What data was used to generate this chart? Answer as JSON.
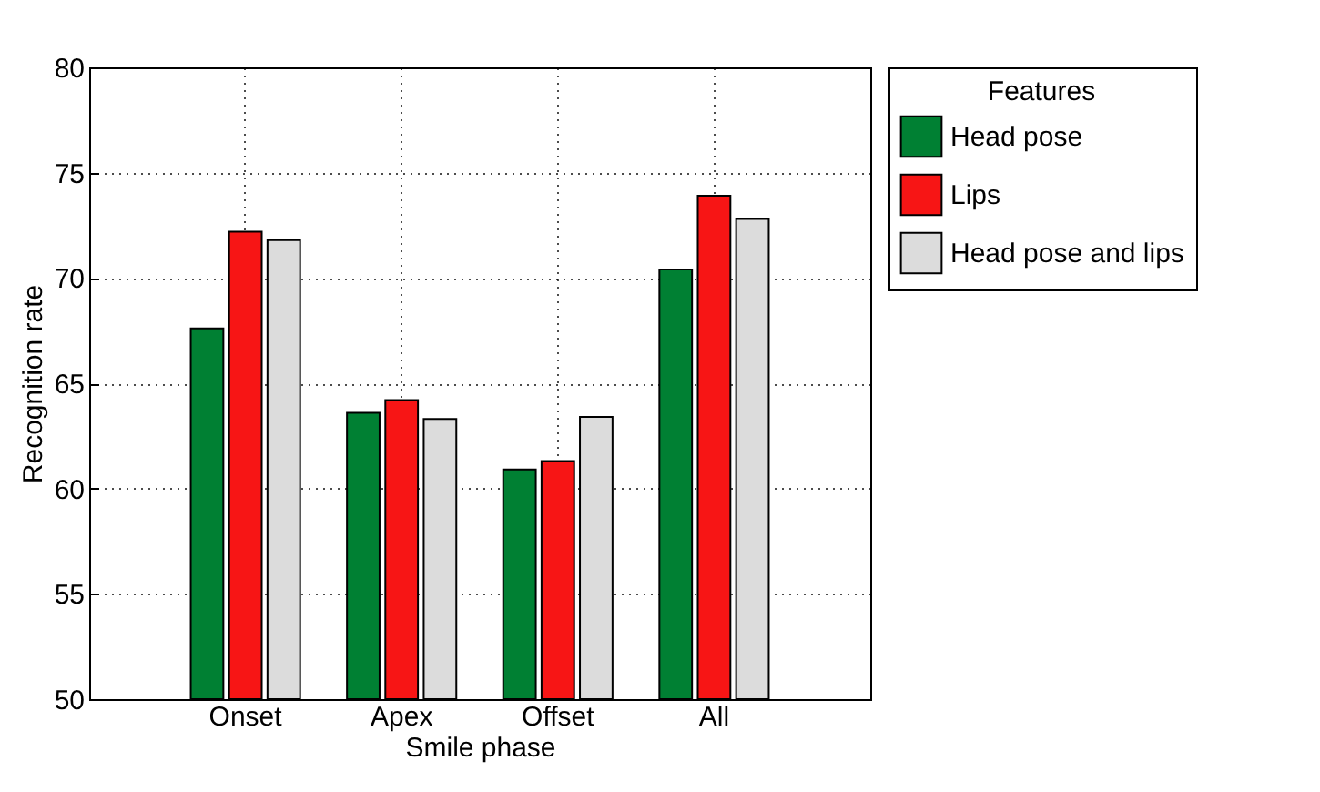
{
  "chart_data": {
    "type": "bar",
    "xlabel": "Smile phase",
    "ylabel": "Recognition rate",
    "legend_title": "Features",
    "categories": [
      "Onset",
      "Apex",
      "Offset",
      "All"
    ],
    "series": [
      {
        "name": "Head pose",
        "color": "#008033",
        "values": [
          67.6,
          63.6,
          60.9,
          70.4
        ]
      },
      {
        "name": "Lips",
        "color": "#f71515",
        "values": [
          72.2,
          64.2,
          61.3,
          73.9
        ]
      },
      {
        "name": "Head pose and lips",
        "color": "#dcdcdc",
        "values": [
          71.8,
          63.3,
          63.4,
          72.8
        ]
      }
    ],
    "ylim": [
      50,
      80
    ],
    "yticks": [
      50,
      55,
      60,
      65,
      70,
      75,
      80
    ],
    "grid": true,
    "legend": "right"
  }
}
